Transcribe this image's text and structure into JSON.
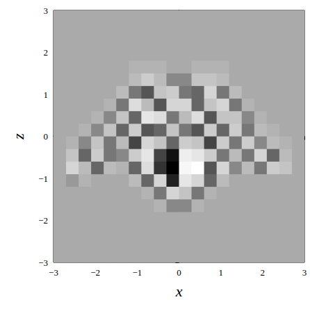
{
  "chart_data": {
    "type": "heatmap",
    "x_label": "x",
    "y_label": "z",
    "x": [
      -2.85,
      -2.55,
      -2.25,
      -1.95,
      -1.65,
      -1.35,
      -1.05,
      -0.75,
      -0.45,
      -0.15,
      0.15,
      0.45,
      0.75,
      1.05,
      1.35,
      1.65,
      1.95,
      2.25,
      2.55,
      2.85
    ],
    "y": [
      2.85,
      2.55,
      2.25,
      1.95,
      1.65,
      1.35,
      1.05,
      0.75,
      0.45,
      0.15,
      -0.15,
      -0.45,
      -0.75,
      -1.05,
      -1.35,
      -1.65,
      -1.95,
      -2.25,
      -2.55,
      -2.85
    ],
    "values": [
      [
        0,
        0,
        0,
        0,
        0,
        0,
        0,
        0,
        0,
        0,
        0,
        0,
        0,
        0,
        0,
        0,
        0,
        0,
        0,
        0
      ],
      [
        0,
        0,
        0,
        0,
        0,
        0,
        0,
        0,
        0,
        0,
        0,
        0,
        0,
        0,
        0,
        0,
        0,
        0,
        0,
        0
      ],
      [
        0,
        0,
        0,
        0,
        0,
        0,
        0,
        0,
        0,
        0,
        0,
        0,
        0,
        0,
        0,
        0,
        0,
        0,
        0,
        0
      ],
      [
        0,
        0,
        0,
        0,
        0,
        0,
        0,
        0,
        0,
        0,
        0,
        0,
        0,
        0,
        0,
        0,
        0,
        0,
        0,
        0
      ],
      [
        0,
        0,
        0,
        0,
        0,
        0,
        0.1,
        0.1,
        0.1,
        0,
        0,
        0.1,
        0.1,
        0.1,
        0,
        0,
        0,
        0,
        0,
        0
      ],
      [
        0,
        0,
        0,
        0,
        0,
        0,
        0.2,
        0.4,
        0.2,
        -0.2,
        -0.2,
        0.3,
        0.3,
        0.2,
        0,
        0,
        0,
        0,
        0,
        0
      ],
      [
        0,
        0,
        0,
        0,
        0,
        0.2,
        -0.3,
        -0.5,
        0.3,
        0.4,
        -0.3,
        -0.4,
        0.5,
        -0.3,
        0.2,
        0,
        0,
        0,
        0,
        0
      ],
      [
        0,
        0,
        0,
        0,
        0.1,
        -0.3,
        0.6,
        0.2,
        -0.5,
        0.5,
        0.5,
        -0.4,
        0.3,
        0.5,
        -0.3,
        0.1,
        0,
        0,
        0,
        0
      ],
      [
        0,
        0,
        0,
        0.1,
        -0.2,
        0.3,
        -0.4,
        0.7,
        0.6,
        -0.3,
        0.2,
        0.6,
        -0.5,
        0.3,
        0.3,
        -0.2,
        0.1,
        0,
        0,
        0
      ],
      [
        0,
        0,
        0.1,
        -0.2,
        0.3,
        -0.4,
        0.4,
        -0.5,
        -0.4,
        0.3,
        -0.3,
        -0.5,
        0.4,
        -0.4,
        0.4,
        -0.3,
        0.2,
        0.1,
        0,
        0
      ],
      [
        0,
        0.1,
        -0.2,
        0.3,
        -0.3,
        0.2,
        -0.6,
        0.5,
        0.3,
        -0.4,
        0.4,
        0.3,
        -0.6,
        0.4,
        -0.3,
        0.4,
        -0.2,
        0.2,
        0.1,
        0
      ],
      [
        0,
        0.3,
        -0.4,
        0.4,
        -0.3,
        -0.2,
        0.4,
        0.7,
        -0.6,
        -0.9,
        0.8,
        0.7,
        0.4,
        -0.3,
        0.2,
        -0.3,
        0.5,
        -0.4,
        0.2,
        0
      ],
      [
        0,
        0.5,
        0.2,
        -0.4,
        0.2,
        0.1,
        -0.4,
        0.6,
        -0.7,
        -1,
        0.9,
        1,
        -0.5,
        0.5,
        -0.2,
        0.2,
        -0.3,
        0.4,
        0.3,
        0
      ],
      [
        0,
        -0.1,
        0.1,
        0,
        0,
        0,
        0.2,
        -0.4,
        0.5,
        -0.8,
        0.7,
        0.5,
        -0.4,
        0.2,
        0,
        0,
        0,
        0,
        0,
        0
      ],
      [
        0,
        0,
        0,
        0,
        0,
        0,
        0,
        0.1,
        -0.3,
        0.5,
        0.3,
        -0.3,
        0.1,
        0,
        0,
        0,
        0,
        0,
        0,
        0
      ],
      [
        0,
        0,
        0,
        0,
        0,
        0,
        0,
        0,
        0.1,
        -0.2,
        -0.2,
        0.1,
        0,
        0,
        0,
        0,
        0,
        0,
        0,
        0
      ],
      [
        0,
        0,
        0,
        0,
        0,
        0,
        0,
        0,
        0,
        0,
        0,
        0,
        0,
        0,
        0,
        0,
        0,
        0,
        0,
        0
      ],
      [
        0,
        0,
        0,
        0,
        0,
        0,
        0,
        0,
        0,
        0,
        0,
        0,
        0,
        0,
        0,
        0,
        0,
        0,
        0,
        0
      ],
      [
        0,
        0,
        0,
        0,
        0,
        0,
        0,
        0,
        0,
        0,
        0,
        0,
        0,
        0,
        0,
        0,
        0,
        0,
        0,
        0
      ],
      [
        0,
        0,
        0,
        0,
        0,
        0,
        0,
        0,
        0,
        0,
        0,
        0,
        0,
        0,
        0,
        0,
        0,
        0,
        0,
        0
      ]
    ],
    "value_range": [
      -1,
      1
    ],
    "xlim": [
      -3,
      3
    ],
    "ylim": [
      -3,
      3
    ],
    "xticks": [
      {
        "value": -3,
        "label": "−3"
      },
      {
        "value": -2,
        "label": "−2"
      },
      {
        "value": -1,
        "label": "−1"
      },
      0,
      1,
      2,
      3
    ],
    "yticks": [
      {
        "value": -3,
        "label": "−3"
      },
      {
        "value": -2,
        "label": "−2"
      },
      {
        "value": -1,
        "label": "−1"
      },
      0,
      1,
      2,
      3
    ]
  }
}
